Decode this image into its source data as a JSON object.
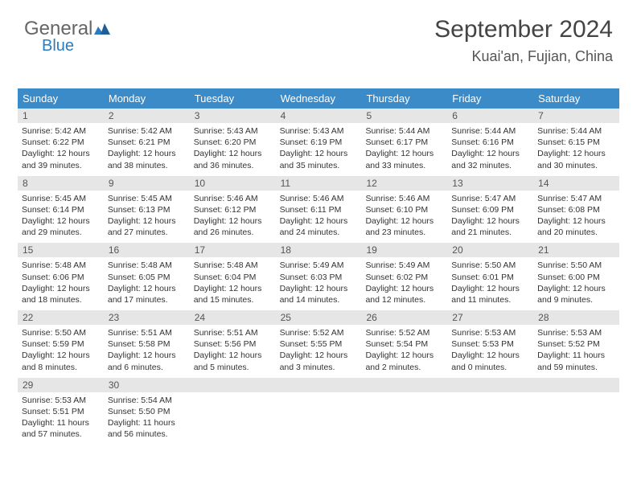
{
  "logo": {
    "text1": "General",
    "text2": "Blue"
  },
  "header": {
    "month": "September 2024",
    "location": "Kuai'an, Fujian, China"
  },
  "colors": {
    "header_bg": "#3b8bc9",
    "daynum_bg": "#e6e6e6",
    "rule": "#3b8bc9"
  },
  "weekdays": [
    "Sunday",
    "Monday",
    "Tuesday",
    "Wednesday",
    "Thursday",
    "Friday",
    "Saturday"
  ],
  "weeks": [
    {
      "nums": [
        "1",
        "2",
        "3",
        "4",
        "5",
        "6",
        "7"
      ],
      "days": [
        {
          "sr": "Sunrise: 5:42 AM",
          "ss": "Sunset: 6:22 PM",
          "d1": "Daylight: 12 hours",
          "d2": "and 39 minutes."
        },
        {
          "sr": "Sunrise: 5:42 AM",
          "ss": "Sunset: 6:21 PM",
          "d1": "Daylight: 12 hours",
          "d2": "and 38 minutes."
        },
        {
          "sr": "Sunrise: 5:43 AM",
          "ss": "Sunset: 6:20 PM",
          "d1": "Daylight: 12 hours",
          "d2": "and 36 minutes."
        },
        {
          "sr": "Sunrise: 5:43 AM",
          "ss": "Sunset: 6:19 PM",
          "d1": "Daylight: 12 hours",
          "d2": "and 35 minutes."
        },
        {
          "sr": "Sunrise: 5:44 AM",
          "ss": "Sunset: 6:17 PM",
          "d1": "Daylight: 12 hours",
          "d2": "and 33 minutes."
        },
        {
          "sr": "Sunrise: 5:44 AM",
          "ss": "Sunset: 6:16 PM",
          "d1": "Daylight: 12 hours",
          "d2": "and 32 minutes."
        },
        {
          "sr": "Sunrise: 5:44 AM",
          "ss": "Sunset: 6:15 PM",
          "d1": "Daylight: 12 hours",
          "d2": "and 30 minutes."
        }
      ]
    },
    {
      "nums": [
        "8",
        "9",
        "10",
        "11",
        "12",
        "13",
        "14"
      ],
      "days": [
        {
          "sr": "Sunrise: 5:45 AM",
          "ss": "Sunset: 6:14 PM",
          "d1": "Daylight: 12 hours",
          "d2": "and 29 minutes."
        },
        {
          "sr": "Sunrise: 5:45 AM",
          "ss": "Sunset: 6:13 PM",
          "d1": "Daylight: 12 hours",
          "d2": "and 27 minutes."
        },
        {
          "sr": "Sunrise: 5:46 AM",
          "ss": "Sunset: 6:12 PM",
          "d1": "Daylight: 12 hours",
          "d2": "and 26 minutes."
        },
        {
          "sr": "Sunrise: 5:46 AM",
          "ss": "Sunset: 6:11 PM",
          "d1": "Daylight: 12 hours",
          "d2": "and 24 minutes."
        },
        {
          "sr": "Sunrise: 5:46 AM",
          "ss": "Sunset: 6:10 PM",
          "d1": "Daylight: 12 hours",
          "d2": "and 23 minutes."
        },
        {
          "sr": "Sunrise: 5:47 AM",
          "ss": "Sunset: 6:09 PM",
          "d1": "Daylight: 12 hours",
          "d2": "and 21 minutes."
        },
        {
          "sr": "Sunrise: 5:47 AM",
          "ss": "Sunset: 6:08 PM",
          "d1": "Daylight: 12 hours",
          "d2": "and 20 minutes."
        }
      ]
    },
    {
      "nums": [
        "15",
        "16",
        "17",
        "18",
        "19",
        "20",
        "21"
      ],
      "days": [
        {
          "sr": "Sunrise: 5:48 AM",
          "ss": "Sunset: 6:06 PM",
          "d1": "Daylight: 12 hours",
          "d2": "and 18 minutes."
        },
        {
          "sr": "Sunrise: 5:48 AM",
          "ss": "Sunset: 6:05 PM",
          "d1": "Daylight: 12 hours",
          "d2": "and 17 minutes."
        },
        {
          "sr": "Sunrise: 5:48 AM",
          "ss": "Sunset: 6:04 PM",
          "d1": "Daylight: 12 hours",
          "d2": "and 15 minutes."
        },
        {
          "sr": "Sunrise: 5:49 AM",
          "ss": "Sunset: 6:03 PM",
          "d1": "Daylight: 12 hours",
          "d2": "and 14 minutes."
        },
        {
          "sr": "Sunrise: 5:49 AM",
          "ss": "Sunset: 6:02 PM",
          "d1": "Daylight: 12 hours",
          "d2": "and 12 minutes."
        },
        {
          "sr": "Sunrise: 5:50 AM",
          "ss": "Sunset: 6:01 PM",
          "d1": "Daylight: 12 hours",
          "d2": "and 11 minutes."
        },
        {
          "sr": "Sunrise: 5:50 AM",
          "ss": "Sunset: 6:00 PM",
          "d1": "Daylight: 12 hours",
          "d2": "and 9 minutes."
        }
      ]
    },
    {
      "nums": [
        "22",
        "23",
        "24",
        "25",
        "26",
        "27",
        "28"
      ],
      "days": [
        {
          "sr": "Sunrise: 5:50 AM",
          "ss": "Sunset: 5:59 PM",
          "d1": "Daylight: 12 hours",
          "d2": "and 8 minutes."
        },
        {
          "sr": "Sunrise: 5:51 AM",
          "ss": "Sunset: 5:58 PM",
          "d1": "Daylight: 12 hours",
          "d2": "and 6 minutes."
        },
        {
          "sr": "Sunrise: 5:51 AM",
          "ss": "Sunset: 5:56 PM",
          "d1": "Daylight: 12 hours",
          "d2": "and 5 minutes."
        },
        {
          "sr": "Sunrise: 5:52 AM",
          "ss": "Sunset: 5:55 PM",
          "d1": "Daylight: 12 hours",
          "d2": "and 3 minutes."
        },
        {
          "sr": "Sunrise: 5:52 AM",
          "ss": "Sunset: 5:54 PM",
          "d1": "Daylight: 12 hours",
          "d2": "and 2 minutes."
        },
        {
          "sr": "Sunrise: 5:53 AM",
          "ss": "Sunset: 5:53 PM",
          "d1": "Daylight: 12 hours",
          "d2": "and 0 minutes."
        },
        {
          "sr": "Sunrise: 5:53 AM",
          "ss": "Sunset: 5:52 PM",
          "d1": "Daylight: 11 hours",
          "d2": "and 59 minutes."
        }
      ]
    },
    {
      "nums": [
        "29",
        "30",
        "",
        "",
        "",
        "",
        ""
      ],
      "days": [
        {
          "sr": "Sunrise: 5:53 AM",
          "ss": "Sunset: 5:51 PM",
          "d1": "Daylight: 11 hours",
          "d2": "and 57 minutes."
        },
        {
          "sr": "Sunrise: 5:54 AM",
          "ss": "Sunset: 5:50 PM",
          "d1": "Daylight: 11 hours",
          "d2": "and 56 minutes."
        },
        null,
        null,
        null,
        null,
        null
      ]
    }
  ]
}
